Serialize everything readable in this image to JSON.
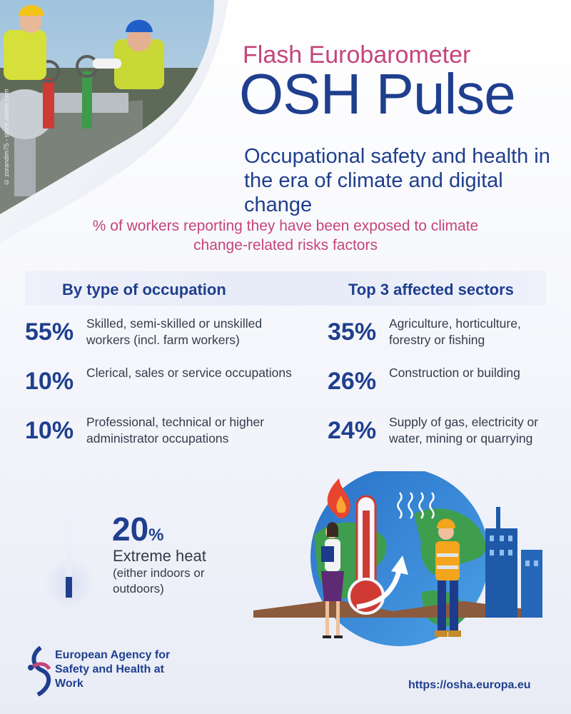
{
  "header": {
    "photo_credit": "© zorandim75 - stock.adobe.com",
    "kicker": "Flash Eurobarometer",
    "title": "OSH Pulse",
    "subtitle": "Occupational safety and health in the era of climate and digital change"
  },
  "lead": "% of workers reporting they have been exposed to climate change-related risks factors",
  "occupation": {
    "heading": "By type of occupation",
    "items": [
      {
        "pct": "55%",
        "label": "Skilled, semi-skilled or unskilled workers (incl. farm workers)"
      },
      {
        "pct": "10%",
        "label": "Clerical, sales or service occupations"
      },
      {
        "pct": "10%",
        "label": "Professional, technical or higher administrator occupations"
      }
    ]
  },
  "sectors": {
    "heading": "Top 3 affected sectors",
    "items": [
      {
        "pct": "35%",
        "label": "Agriculture, horticulture, forestry or fishing"
      },
      {
        "pct": "26%",
        "label": "Construction or building"
      },
      {
        "pct": "24%",
        "label": "Supply of gas, electricity or water, mining or quarrying"
      }
    ]
  },
  "heat": {
    "value": "20",
    "unit": "%",
    "fill_fraction": 0.2,
    "title": "Extreme heat",
    "note": "(either indoors or outdoors)"
  },
  "footer": {
    "agency": "European Agency for Safety and Health at Work",
    "url": "https://osha.europa.eu"
  },
  "colors": {
    "navy": "#1f3f8e",
    "pink": "#c5457a",
    "text": "#333b4a"
  },
  "icons": [
    "thermometer-icon",
    "fire-icon",
    "heat-waves-icon",
    "globe-icon",
    "arrow-up-icon",
    "worker-icon",
    "city-icon",
    "agency-logo-icon"
  ]
}
